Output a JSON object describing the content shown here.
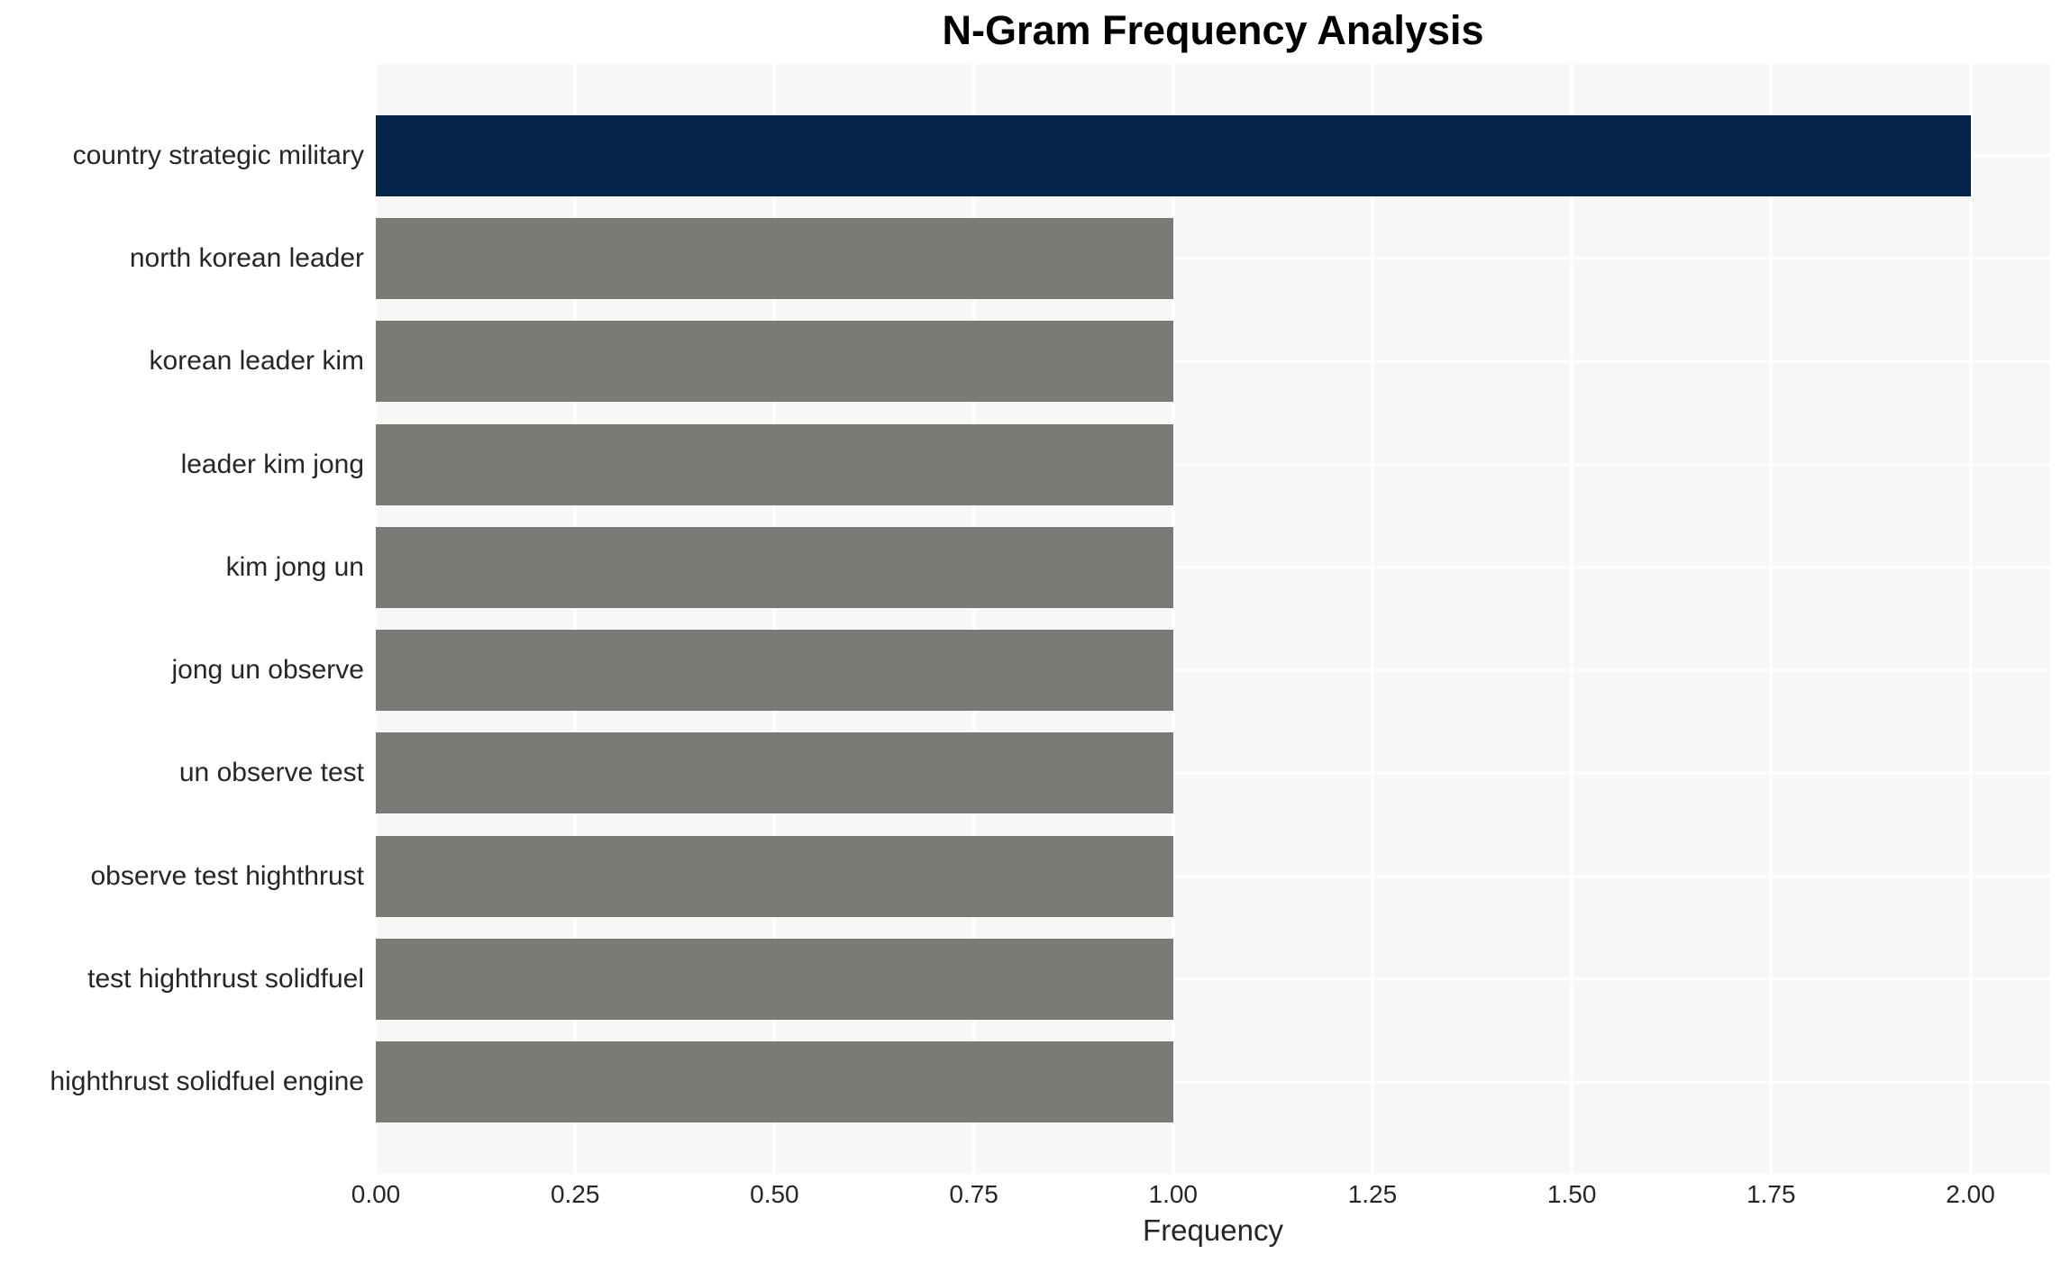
{
  "chart_data": {
    "type": "bar",
    "orientation": "horizontal",
    "title": "N-Gram Frequency Analysis",
    "xlabel": "Frequency",
    "ylabel": "",
    "categories": [
      "country strategic military",
      "north korean leader",
      "korean leader kim",
      "leader kim jong",
      "kim jong un",
      "jong un observe",
      "un observe test",
      "observe test highthrust",
      "test highthrust solidfuel",
      "highthrust solidfuel engine"
    ],
    "values": [
      2.0,
      1.0,
      1.0,
      1.0,
      1.0,
      1.0,
      1.0,
      1.0,
      1.0,
      1.0
    ],
    "bar_colors": [
      "#042348",
      "#7b7a75",
      "#7b7a75",
      "#7b7a75",
      "#7b7a75",
      "#7b7a75",
      "#7b7a75",
      "#7b7a75",
      "#7b7a75",
      "#7b7a75"
    ],
    "x_ticks": [
      {
        "value": 0,
        "label": "0.00"
      },
      {
        "value": 0.25,
        "label": "0.25"
      },
      {
        "value": 0.5,
        "label": "0.50"
      },
      {
        "value": 0.75,
        "label": "0.75"
      },
      {
        "value": 1,
        "label": "1.00"
      },
      {
        "value": 1.25,
        "label": "1.25"
      },
      {
        "value": 1.5,
        "label": "1.50"
      },
      {
        "value": 1.75,
        "label": "1.75"
      },
      {
        "value": 2,
        "label": "2.00"
      }
    ],
    "xlim": [
      0,
      2.1
    ],
    "grid": true,
    "legend": false,
    "styles": {
      "plot_bg": "#f7f7f7",
      "grid_color": "#ffffff",
      "text_color": "#262626",
      "title_color": "#000000",
      "highlight_bar_color": "#042348",
      "default_bar_color": "#7b7a75"
    }
  }
}
